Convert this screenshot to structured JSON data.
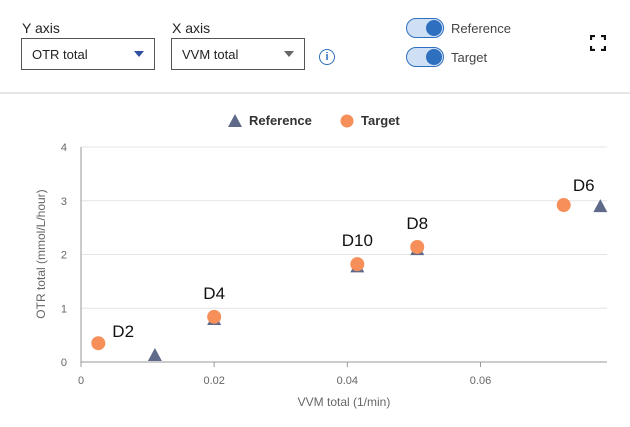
{
  "controls": {
    "y_axis_label": "Y axis",
    "y_axis_value": "OTR total",
    "x_axis_label": "X axis",
    "x_axis_value": "VVM total",
    "toggles": [
      {
        "label": "Reference",
        "on": true
      },
      {
        "label": "Target",
        "on": true
      }
    ]
  },
  "colors": {
    "reference": "#5f6a8a",
    "target": "#f78f5a",
    "toggle": "#2f6fbf"
  },
  "chart_data": {
    "type": "scatter",
    "xlabel": "VVM total (1/min)",
    "ylabel": "OTR total (mmol/L/hour)",
    "xlim": [
      0,
      0.079
    ],
    "ylim": [
      0,
      4
    ],
    "xticks": [
      0,
      0.02,
      0.04,
      0.06
    ],
    "xtick_labels": [
      "0",
      "0.02",
      "0.04",
      "0.06"
    ],
    "yticks": [
      0,
      1,
      2,
      3,
      4
    ],
    "ytick_labels": [
      "0",
      "1",
      "2",
      "3",
      "4"
    ],
    "grid": true,
    "legend": "top-center",
    "series": [
      {
        "name": "Reference",
        "marker": "triangle",
        "points": [
          {
            "x": 0.0111,
            "y": 0.13
          },
          {
            "x": 0.02,
            "y": 0.8
          },
          {
            "x": 0.0415,
            "y": 1.78
          },
          {
            "x": 0.0505,
            "y": 2.1
          },
          {
            "x": 0.078,
            "y": 2.9
          }
        ]
      },
      {
        "name": "Target",
        "marker": "circle",
        "points": [
          {
            "x": 0.0026,
            "y": 0.35,
            "label": "D2"
          },
          {
            "x": 0.02,
            "y": 0.84,
            "label": "D4"
          },
          {
            "x": 0.0415,
            "y": 1.82,
            "label": "D10"
          },
          {
            "x": 0.0505,
            "y": 2.14,
            "label": "D8"
          },
          {
            "x": 0.0725,
            "y": 2.92,
            "label": "D6"
          }
        ]
      }
    ]
  }
}
